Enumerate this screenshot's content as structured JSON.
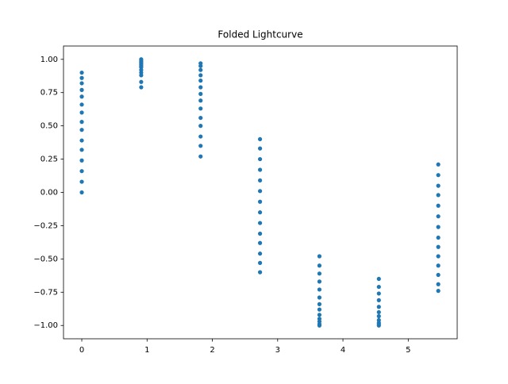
{
  "chart_data": {
    "type": "scatter",
    "title": "Folded Lightcurve",
    "series": [
      {
        "color": "#1f77b4",
        "x": [
          0,
          0,
          0,
          0,
          0,
          0,
          0,
          0,
          0,
          0,
          0,
          0,
          0,
          0,
          0,
          0.91,
          0.91,
          0.91,
          0.91,
          0.91,
          0.91,
          0.91,
          0.91,
          0.91,
          0.91,
          0.91,
          0.91,
          1.82,
          1.82,
          1.82,
          1.82,
          1.82,
          1.82,
          1.82,
          1.82,
          1.82,
          1.82,
          1.82,
          1.82,
          1.82,
          1.82,
          2.73,
          2.73,
          2.73,
          2.73,
          2.73,
          2.73,
          2.73,
          2.73,
          2.73,
          2.73,
          2.73,
          2.73,
          2.73,
          2.73,
          3.64,
          3.64,
          3.64,
          3.64,
          3.64,
          3.64,
          3.64,
          3.64,
          3.64,
          3.64,
          3.64,
          3.64,
          3.64,
          4.55,
          4.55,
          4.55,
          4.55,
          4.55,
          4.55,
          4.55,
          4.55,
          4.55,
          4.55,
          4.55,
          5.46,
          5.46,
          5.46,
          5.46,
          5.46,
          5.46,
          5.46,
          5.46,
          5.46,
          5.46,
          5.46,
          5.46,
          5.46,
          5.46
        ],
        "values": [
          0.0,
          0.08,
          0.16,
          0.24,
          0.32,
          0.39,
          0.47,
          0.53,
          0.6,
          0.66,
          0.72,
          0.77,
          0.82,
          0.86,
          0.9,
          0.79,
          0.83,
          0.88,
          0.9,
          0.92,
          0.94,
          0.95,
          0.96,
          0.97,
          0.98,
          0.99,
          1.0,
          0.27,
          0.35,
          0.42,
          0.5,
          0.56,
          0.63,
          0.69,
          0.74,
          0.79,
          0.84,
          0.88,
          0.92,
          0.95,
          0.97,
          0.4,
          0.33,
          0.25,
          0.17,
          0.09,
          0.01,
          -0.07,
          -0.15,
          -0.23,
          -0.31,
          -0.38,
          -0.46,
          -0.53,
          -0.6,
          -0.48,
          -0.55,
          -0.61,
          -0.67,
          -0.73,
          -0.79,
          -0.84,
          -0.88,
          -0.92,
          -0.95,
          -0.97,
          -0.99,
          -1.0,
          -0.65,
          -0.71,
          -0.76,
          -0.81,
          -0.86,
          -0.9,
          -0.93,
          -0.96,
          -0.98,
          -0.99,
          -1.0,
          0.21,
          0.13,
          0.05,
          -0.02,
          -0.1,
          -0.18,
          -0.26,
          -0.34,
          -0.41,
          -0.48,
          -0.55,
          -0.62,
          -0.69,
          -0.74
        ]
      }
    ],
    "xlim": [
      -0.28,
      5.75
    ],
    "xticks": [
      0,
      1,
      2,
      3,
      4,
      5
    ],
    "ylim": [
      -1.1,
      1.1
    ],
    "yticks": [
      {
        "value": -1,
        "label": "−1.00"
      },
      {
        "value": -0.75,
        "label": "−0.75"
      },
      {
        "value": -0.5,
        "label": "−0.50"
      },
      {
        "value": -0.25,
        "label": "−0.25"
      },
      {
        "value": 0,
        "label": "0.00"
      },
      {
        "value": 0.25,
        "label": "0.25"
      },
      {
        "value": 0.5,
        "label": "0.50"
      },
      {
        "value": 0.75,
        "label": "0.75"
      },
      {
        "value": 1,
        "label": "1.00"
      }
    ],
    "grid": false
  }
}
